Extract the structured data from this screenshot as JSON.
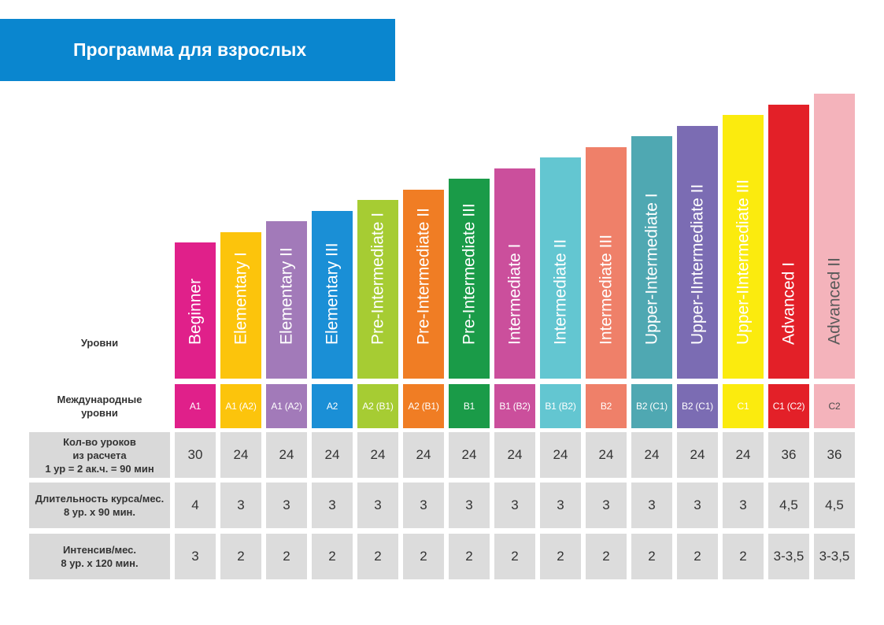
{
  "title": "Программа для взрослых",
  "row_labels": {
    "levels": "Уровни",
    "intl": "Международные\nуровни",
    "lessons": "Кол-во уроков\nиз расчета\n1 ур = 2 ак.ч. = 90 мин",
    "duration": "Длительность курса/мес.\n8 ур. х 90 мин.",
    "intensive": "Интенсив/мес.\n8 ур. х 120 мин."
  },
  "columns": [
    {
      "level": "Beginner",
      "intl": "A1",
      "lessons": "30",
      "duration": "4",
      "intensive": "3",
      "color": "#e0208a"
    },
    {
      "level": "Elementary I",
      "intl": "A1 (A2)",
      "lessons": "24",
      "duration": "3",
      "intensive": "2",
      "color": "#fcc40c"
    },
    {
      "level": "Elementary II",
      "intl": "A1 (A2)",
      "lessons": "24",
      "duration": "3",
      "intensive": "2",
      "color": "#a27ab9"
    },
    {
      "level": "Elementary III",
      "intl": "A2",
      "lessons": "24",
      "duration": "3",
      "intensive": "2",
      "color": "#1a8fd6"
    },
    {
      "level": "Pre-Intermediate I",
      "intl": "A2 (B1)",
      "lessons": "24",
      "duration": "3",
      "intensive": "2",
      "color": "#a6cc33"
    },
    {
      "level": "Pre-Intermediate II",
      "intl": "A2 (B1)",
      "lessons": "24",
      "duration": "3",
      "intensive": "2",
      "color": "#f07d24"
    },
    {
      "level": "Pre-Intermediate III",
      "intl": "B1",
      "lessons": "24",
      "duration": "3",
      "intensive": "2",
      "color": "#1a9b48"
    },
    {
      "level": "Intermediate I",
      "intl": "B1 (B2)",
      "lessons": "24",
      "duration": "3",
      "intensive": "2",
      "color": "#cb4f9c"
    },
    {
      "level": "Intermediate II",
      "intl": "B1 (B2)",
      "lessons": "24",
      "duration": "3",
      "intensive": "2",
      "color": "#63c6d1"
    },
    {
      "level": "Intermediate III",
      "intl": "B2",
      "lessons": "24",
      "duration": "3",
      "intensive": "2",
      "color": "#ef8069"
    },
    {
      "level": "Upper-Intermediate I",
      "intl": "B2 (C1)",
      "lessons": "24",
      "duration": "3",
      "intensive": "2",
      "color": "#4fa8b2"
    },
    {
      "level": "Upper-IIntermediate II",
      "intl": "B2 (C1)",
      "lessons": "24",
      "duration": "3",
      "intensive": "2",
      "color": "#7b6cb3"
    },
    {
      "level": "Upper-IIntermediate III",
      "intl": "C1",
      "lessons": "24",
      "duration": "3",
      "intensive": "2",
      "color": "#fbeb0e"
    },
    {
      "level": "Advanced I",
      "intl": "C1 (C2)",
      "lessons": "36",
      "duration": "4,5",
      "intensive": "3-3,5",
      "color": "#e32028"
    },
    {
      "level": "Advanced II",
      "intl": "C2",
      "lessons": "36",
      "duration": "4,5",
      "intensive": "3-3,5",
      "color": "#f4b3bb"
    }
  ]
}
